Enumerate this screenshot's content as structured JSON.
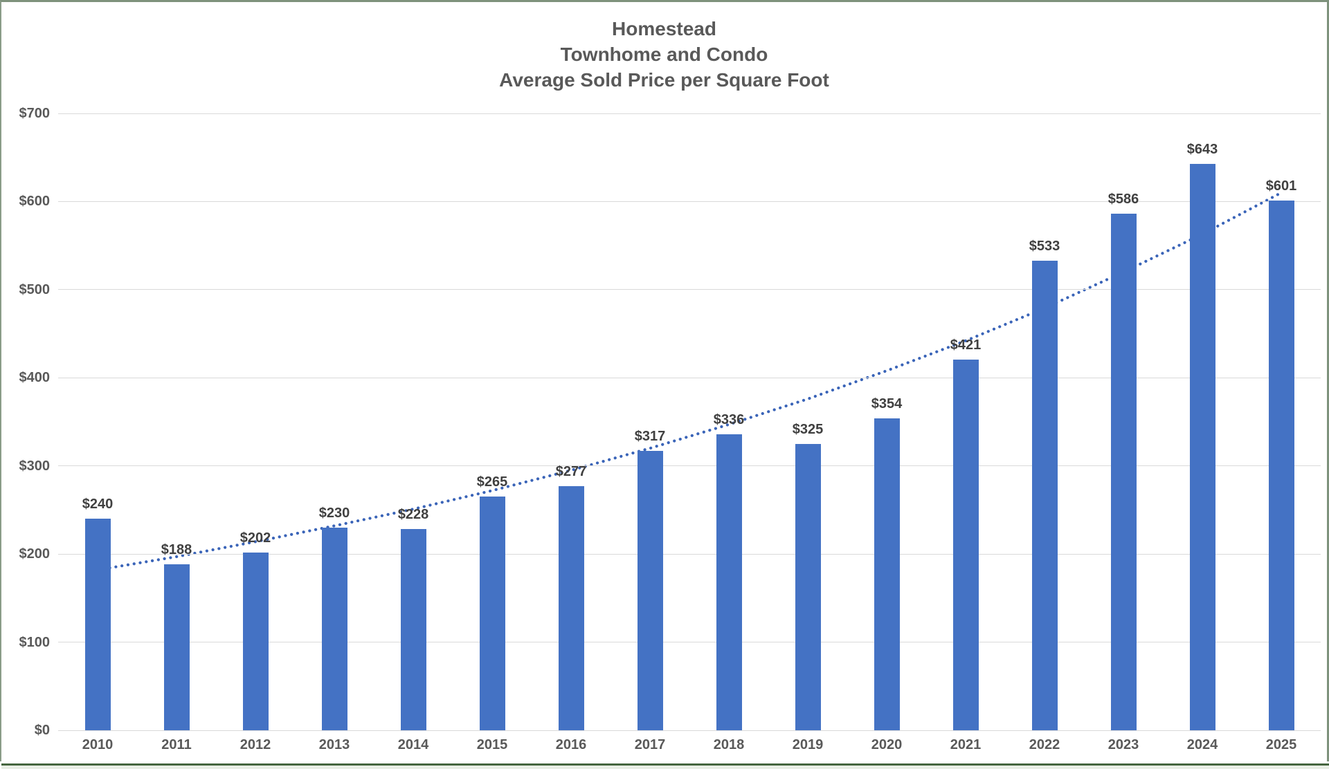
{
  "chart_data": {
    "type": "bar",
    "title_lines": [
      "Homestead",
      "Townhome and Condo",
      "Average Sold Price per Square Foot"
    ],
    "categories": [
      "2010",
      "2011",
      "2012",
      "2013",
      "2014",
      "2015",
      "2016",
      "2017",
      "2018",
      "2019",
      "2020",
      "2021",
      "2022",
      "2023",
      "2024",
      "2025"
    ],
    "values": [
      240,
      188,
      202,
      230,
      228,
      265,
      277,
      317,
      336,
      325,
      354,
      421,
      533,
      586,
      643,
      601
    ],
    "data_labels": [
      "$240",
      "$188",
      "$202",
      "$230",
      "$228",
      "$265",
      "$277",
      "$317",
      "$336",
      "$325",
      "$354",
      "$421",
      "$533",
      "$586",
      "$643",
      "$601"
    ],
    "series_name": "Average Sold Price per Square Foot",
    "trendline": {
      "style": "dotted",
      "fit": "exponential",
      "values": [
        182,
        197,
        214,
        232,
        251,
        272,
        295,
        320,
        347,
        376,
        408,
        442,
        479,
        520,
        563,
        610
      ]
    },
    "ylim": [
      0,
      700
    ],
    "ytick_step": 100,
    "yticks_top_to_bottom": [
      "$700",
      "$600",
      "$500",
      "$400",
      "$300",
      "$200",
      "$100",
      "$0"
    ],
    "grid": true,
    "legend": false,
    "xlabel": "",
    "ylabel": "",
    "colors": {
      "bar": "#4472C4",
      "trendline": "#3A64B8",
      "gridline": "#D9D9D9",
      "axis_text": "#595959",
      "label_text": "#404040",
      "title_text": "#595959",
      "frame_border": "#7E927C",
      "bottom_line": "#45663F",
      "bottom_strip": "#E8EEE5",
      "background": "#FFFFFF"
    }
  }
}
